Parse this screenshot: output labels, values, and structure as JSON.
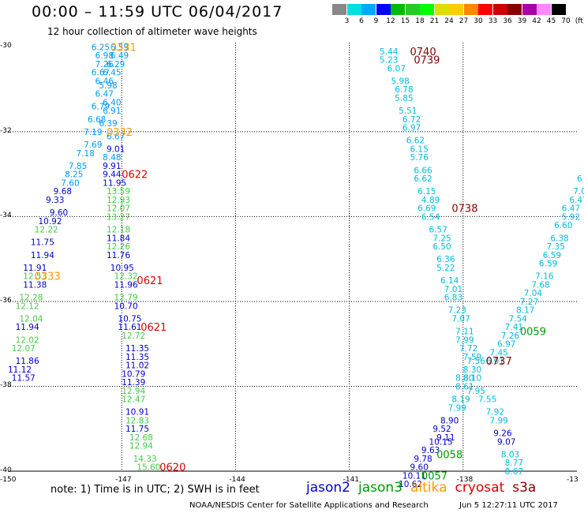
{
  "header": {
    "title": "00:00 – 11:59 UTC 06/04/2017",
    "subtitle": "12 hour collection of altimeter wave heights"
  },
  "scale": {
    "colors": [
      "#888888",
      "#00e0e0",
      "#00a8ff",
      "#0000ff",
      "#00bb00",
      "#22cc22",
      "#00ff00",
      "#dddd00",
      "#ffcc00",
      "#ff8800",
      "#ff0000",
      "#cc0000",
      "#880000",
      "#aa00aa",
      "#ff88ff",
      "#000000"
    ],
    "labels": [
      "3",
      "6",
      "9",
      "12",
      "15",
      "18",
      "21",
      "24",
      "27",
      "30",
      "33",
      "36",
      "39",
      "42",
      "45",
      "70",
      "(ft)"
    ]
  },
  "axes": {
    "lat_labels": [
      "-30",
      "-32",
      "-34",
      "-36",
      "-38",
      "-40"
    ],
    "lon_labels": [
      "-150",
      "-147",
      "-144",
      "-141",
      "-138",
      "-13"
    ]
  },
  "chart_data": {
    "type": "scatter",
    "map_bounds": {
      "lon": [
        -150,
        -135
      ],
      "lat": [
        -40,
        -29.9
      ]
    },
    "series_colors": {
      "jason2": "#0000cc",
      "jason3": "#009900",
      "altika": "#ff9900",
      "cryosat": "#dd0000",
      "s3a": "#880000"
    },
    "value_colors": {
      "c1": "#00bbdd",
      "c2": "#0099ff",
      "c3": "#0000cc",
      "c4": "#44cc44"
    },
    "points": [
      {
        "lon": -147.8,
        "lat": -30.0,
        "v": "6.25",
        "c": "c2"
      },
      {
        "lon": -147.3,
        "lat": -30.0,
        "v": "6.59",
        "c": "c2"
      },
      {
        "lon": -147.7,
        "lat": -30.2,
        "v": "6.98",
        "c": "c2"
      },
      {
        "lon": -147.3,
        "lat": -30.2,
        "v": "6.49",
        "c": "c2"
      },
      {
        "lon": -147.7,
        "lat": -30.4,
        "v": "7.26",
        "c": "c2"
      },
      {
        "lon": -147.4,
        "lat": -30.4,
        "v": "6.29",
        "c": "c2"
      },
      {
        "lon": -147.8,
        "lat": -30.6,
        "v": "6.67",
        "c": "c2"
      },
      {
        "lon": -147.5,
        "lat": -30.6,
        "v": "6.45",
        "c": "c2"
      },
      {
        "lon": -147.7,
        "lat": -30.8,
        "v": "6.46",
        "c": "c2"
      },
      {
        "lon": -147.6,
        "lat": -30.9,
        "v": "5.98",
        "c": "c2"
      },
      {
        "lon": -147.7,
        "lat": -31.1,
        "v": "6.47",
        "c": "c2"
      },
      {
        "lon": -147.5,
        "lat": -31.3,
        "v": "6.40",
        "c": "c2"
      },
      {
        "lon": -147.8,
        "lat": -31.4,
        "v": "6.79",
        "c": "c2"
      },
      {
        "lon": -147.5,
        "lat": -31.5,
        "v": "6.91",
        "c": "c2"
      },
      {
        "lon": -147.9,
        "lat": -31.7,
        "v": "6.68",
        "c": "c2"
      },
      {
        "lon": -147.6,
        "lat": -31.8,
        "v": "6.39",
        "c": "c2"
      },
      {
        "lon": -148.0,
        "lat": -32.0,
        "v": "7.19",
        "c": "c2"
      },
      {
        "lon": -147.4,
        "lat": -32.1,
        "v": "6.67",
        "c": "c2"
      },
      {
        "lon": -148.0,
        "lat": -32.3,
        "v": "7.69",
        "c": "c2"
      },
      {
        "lon": -147.4,
        "lat": -32.4,
        "v": "9.01",
        "c": "c3"
      },
      {
        "lon": -148.2,
        "lat": -32.5,
        "v": "7.18",
        "c": "c2"
      },
      {
        "lon": -147.5,
        "lat": -32.6,
        "v": "8.48",
        "c": "c2"
      },
      {
        "lon": -148.4,
        "lat": -32.8,
        "v": "7.85",
        "c": "c2"
      },
      {
        "lon": -147.5,
        "lat": -32.8,
        "v": "9.91",
        "c": "c3"
      },
      {
        "lon": -148.5,
        "lat": -33.0,
        "v": "8.25",
        "c": "c2"
      },
      {
        "lon": -147.5,
        "lat": -33.0,
        "v": "9.44",
        "c": "c3"
      },
      {
        "lon": -148.6,
        "lat": -33.2,
        "v": "7.60",
        "c": "c2"
      },
      {
        "lon": -147.5,
        "lat": -33.2,
        "v": "11.95",
        "c": "c3"
      },
      {
        "lon": -148.8,
        "lat": -33.4,
        "v": "9.68",
        "c": "c3"
      },
      {
        "lon": -147.4,
        "lat": -33.4,
        "v": "13.59",
        "c": "c4"
      },
      {
        "lon": -149.0,
        "lat": -33.6,
        "v": "9.33",
        "c": "c3"
      },
      {
        "lon": -147.4,
        "lat": -33.6,
        "v": "12.93",
        "c": "c4"
      },
      {
        "lon": -148.9,
        "lat": -33.9,
        "v": "9.60",
        "c": "c3"
      },
      {
        "lon": -147.4,
        "lat": -33.8,
        "v": "12.07",
        "c": "c4"
      },
      {
        "lon": -149.2,
        "lat": -34.1,
        "v": "10.92",
        "c": "c3"
      },
      {
        "lon": -147.4,
        "lat": -34.0,
        "v": "13.27",
        "c": "c4"
      },
      {
        "lon": -149.3,
        "lat": -34.3,
        "v": "12.22",
        "c": "c4"
      },
      {
        "lon": -147.4,
        "lat": -34.3,
        "v": "12.18",
        "c": "c4"
      },
      {
        "lon": -149.4,
        "lat": -34.6,
        "v": "11.75",
        "c": "c3"
      },
      {
        "lon": -147.4,
        "lat": -34.5,
        "v": "11.84",
        "c": "c3"
      },
      {
        "lon": -149.4,
        "lat": -34.9,
        "v": "11.94",
        "c": "c3"
      },
      {
        "lon": -147.4,
        "lat": -34.7,
        "v": "12.26",
        "c": "c4"
      },
      {
        "lon": -147.4,
        "lat": -34.9,
        "v": "11.76",
        "c": "c3"
      },
      {
        "lon": -149.6,
        "lat": -35.2,
        "v": "11.91",
        "c": "c3"
      },
      {
        "lon": -147.3,
        "lat": -35.2,
        "v": "10.95",
        "c": "c3"
      },
      {
        "lon": -149.6,
        "lat": -35.4,
        "v": "12.53",
        "c": "c4"
      },
      {
        "lon": -147.2,
        "lat": -35.4,
        "v": "12.32",
        "c": "c4"
      },
      {
        "lon": -149.6,
        "lat": -35.6,
        "v": "11.38",
        "c": "c3"
      },
      {
        "lon": -147.2,
        "lat": -35.6,
        "v": "11.96",
        "c": "c3"
      },
      {
        "lon": -149.7,
        "lat": -35.9,
        "v": "12.28",
        "c": "c4"
      },
      {
        "lon": -147.2,
        "lat": -35.9,
        "v": "12.79",
        "c": "c4"
      },
      {
        "lon": -149.8,
        "lat": -36.1,
        "v": "12.12",
        "c": "c4"
      },
      {
        "lon": -147.2,
        "lat": -36.1,
        "v": "10.70",
        "c": "c3"
      },
      {
        "lon": -149.7,
        "lat": -36.4,
        "v": "12.04",
        "c": "c4"
      },
      {
        "lon": -147.1,
        "lat": -36.4,
        "v": "10.75",
        "c": "c3"
      },
      {
        "lon": -149.8,
        "lat": -36.6,
        "v": "11.94",
        "c": "c3"
      },
      {
        "lon": -147.1,
        "lat": -36.6,
        "v": "11.61",
        "c": "c3"
      },
      {
        "lon": -149.8,
        "lat": -36.9,
        "v": "12.02",
        "c": "c4"
      },
      {
        "lon": -147.0,
        "lat": -36.8,
        "v": "12.72",
        "c": "c4"
      },
      {
        "lon": -149.9,
        "lat": -37.1,
        "v": "12.07",
        "c": "c4"
      },
      {
        "lon": -146.9,
        "lat": -37.1,
        "v": "11.35",
        "c": "c3"
      },
      {
        "lon": -149.8,
        "lat": -37.4,
        "v": "11.86",
        "c": "c3"
      },
      {
        "lon": -146.9,
        "lat": -37.3,
        "v": "11.35",
        "c": "c3"
      },
      {
        "lon": -150.0,
        "lat": -37.6,
        "v": "11.12",
        "c": "c3"
      },
      {
        "lon": -146.9,
        "lat": -37.5,
        "v": "11.02",
        "c": "c3"
      },
      {
        "lon": -149.9,
        "lat": -37.8,
        "v": "11.57",
        "c": "c3"
      },
      {
        "lon": -147.0,
        "lat": -37.7,
        "v": "10.79",
        "c": "c3"
      },
      {
        "lon": -147.0,
        "lat": -37.9,
        "v": "11.39",
        "c": "c3"
      },
      {
        "lon": -147.0,
        "lat": -38.1,
        "v": "12.94",
        "c": "c4"
      },
      {
        "lon": -147.0,
        "lat": -38.3,
        "v": "12.47",
        "c": "c4"
      },
      {
        "lon": -146.9,
        "lat": -38.6,
        "v": "10.91",
        "c": "c3"
      },
      {
        "lon": -146.9,
        "lat": -38.8,
        "v": "12.83",
        "c": "c4"
      },
      {
        "lon": -146.9,
        "lat": -39.0,
        "v": "11.75",
        "c": "c3"
      },
      {
        "lon": -146.8,
        "lat": -39.2,
        "v": "12.68",
        "c": "c4"
      },
      {
        "lon": -146.8,
        "lat": -39.4,
        "v": "12.94",
        "c": "c4"
      },
      {
        "lon": -146.7,
        "lat": -39.7,
        "v": "14.33",
        "c": "c4"
      },
      {
        "lon": -146.6,
        "lat": -39.9,
        "v": "15.60",
        "c": "c4"
      },
      {
        "lon": -140.2,
        "lat": -30.1,
        "v": "5.44",
        "c": "c1"
      },
      {
        "lon": -140.2,
        "lat": -30.3,
        "v": "5.23",
        "c": "c1"
      },
      {
        "lon": -140.0,
        "lat": -30.5,
        "v": "6.07",
        "c": "c1"
      },
      {
        "lon": -139.9,
        "lat": -30.8,
        "v": "5.98",
        "c": "c1"
      },
      {
        "lon": -139.8,
        "lat": -31.0,
        "v": "6.78",
        "c": "c1"
      },
      {
        "lon": -139.8,
        "lat": -31.2,
        "v": "5.85",
        "c": "c1"
      },
      {
        "lon": -139.7,
        "lat": -31.5,
        "v": "5.51",
        "c": "c1"
      },
      {
        "lon": -139.6,
        "lat": -31.7,
        "v": "6.72",
        "c": "c1"
      },
      {
        "lon": -139.6,
        "lat": -31.9,
        "v": "6.97",
        "c": "c1"
      },
      {
        "lon": -139.5,
        "lat": -32.2,
        "v": "6.62",
        "c": "c1"
      },
      {
        "lon": -139.4,
        "lat": -32.4,
        "v": "6.15",
        "c": "c1"
      },
      {
        "lon": -139.4,
        "lat": -32.6,
        "v": "5.76",
        "c": "c1"
      },
      {
        "lon": -139.3,
        "lat": -32.9,
        "v": "6.66",
        "c": "c1"
      },
      {
        "lon": -139.3,
        "lat": -33.1,
        "v": "6.62",
        "c": "c1"
      },
      {
        "lon": -139.2,
        "lat": -33.4,
        "v": "6.15",
        "c": "c1"
      },
      {
        "lon": -139.1,
        "lat": -33.6,
        "v": "4.89",
        "c": "c1"
      },
      {
        "lon": -139.2,
        "lat": -33.8,
        "v": "6.69",
        "c": "c1"
      },
      {
        "lon": -139.1,
        "lat": -34.0,
        "v": "6.54",
        "c": "c1"
      },
      {
        "lon": -138.9,
        "lat": -34.3,
        "v": "6.57",
        "c": "c1"
      },
      {
        "lon": -138.8,
        "lat": -34.5,
        "v": "7.25",
        "c": "c1"
      },
      {
        "lon": -138.8,
        "lat": -34.7,
        "v": "6.50",
        "c": "c1"
      },
      {
        "lon": -138.7,
        "lat": -35.0,
        "v": "6.36",
        "c": "c1"
      },
      {
        "lon": -138.7,
        "lat": -35.2,
        "v": "5.22",
        "c": "c1"
      },
      {
        "lon": -138.6,
        "lat": -35.5,
        "v": "6.14",
        "c": "c1"
      },
      {
        "lon": -138.5,
        "lat": -35.7,
        "v": "7.01",
        "c": "c1"
      },
      {
        "lon": -138.5,
        "lat": -35.9,
        "v": "6.83",
        "c": "c1"
      },
      {
        "lon": -138.4,
        "lat": -36.2,
        "v": "7.23",
        "c": "c1"
      },
      {
        "lon": -138.3,
        "lat": -36.4,
        "v": "7.07",
        "c": "c1"
      },
      {
        "lon": -138.2,
        "lat": -36.7,
        "v": "7.11",
        "c": "c1"
      },
      {
        "lon": -138.2,
        "lat": -36.9,
        "v": "7.99",
        "c": "c1"
      },
      {
        "lon": -138.1,
        "lat": -37.1,
        "v": "7.72",
        "c": "c1"
      },
      {
        "lon": -138.0,
        "lat": -37.3,
        "v": "7.59",
        "c": "c1"
      },
      {
        "lon": -137.9,
        "lat": -37.4,
        "v": "7.56",
        "c": "c1"
      },
      {
        "lon": -138.0,
        "lat": -37.6,
        "v": "8.30",
        "c": "c1"
      },
      {
        "lon": -138.2,
        "lat": -37.8,
        "v": "8.80",
        "c": "c1"
      },
      {
        "lon": -138.0,
        "lat": -37.8,
        "v": "8.10",
        "c": "c1"
      },
      {
        "lon": -138.2,
        "lat": -38.0,
        "v": "8.61",
        "c": "c1"
      },
      {
        "lon": -137.9,
        "lat": -38.1,
        "v": "7.95",
        "c": "c1"
      },
      {
        "lon": -138.3,
        "lat": -38.3,
        "v": "8.19",
        "c": "c1"
      },
      {
        "lon": -137.6,
        "lat": -38.3,
        "v": "7.55",
        "c": "c1"
      },
      {
        "lon": -138.4,
        "lat": -38.5,
        "v": "7.99",
        "c": "c1"
      },
      {
        "lon": -137.4,
        "lat": -38.6,
        "v": "7.92",
        "c": "c1"
      },
      {
        "lon": -138.6,
        "lat": -38.8,
        "v": "8.90",
        "c": "c3"
      },
      {
        "lon": -137.3,
        "lat": -38.8,
        "v": "7.99",
        "c": "c1"
      },
      {
        "lon": -138.8,
        "lat": -39.0,
        "v": "9.52",
        "c": "c3"
      },
      {
        "lon": -137.2,
        "lat": -39.1,
        "v": "9.26",
        "c": "c3"
      },
      {
        "lon": -138.7,
        "lat": -39.2,
        "v": "9.11",
        "c": "c3"
      },
      {
        "lon": -137.1,
        "lat": -39.3,
        "v": "9.07",
        "c": "c3"
      },
      {
        "lon": -138.9,
        "lat": -39.3,
        "v": "10.15",
        "c": "c3"
      },
      {
        "lon": -137.0,
        "lat": -39.6,
        "v": "8.03",
        "c": "c1"
      },
      {
        "lon": -139.1,
        "lat": -39.5,
        "v": "9.63",
        "c": "c3"
      },
      {
        "lon": -136.9,
        "lat": -39.8,
        "v": "8.77",
        "c": "c1"
      },
      {
        "lon": -139.3,
        "lat": -39.7,
        "v": "9.78",
        "c": "c3"
      },
      {
        "lon": -136.9,
        "lat": -40.0,
        "v": "8.67",
        "c": "c1"
      },
      {
        "lon": -139.4,
        "lat": -39.9,
        "v": "9.60",
        "c": "c3"
      },
      {
        "lon": -139.6,
        "lat": -40.1,
        "v": "10.11",
        "c": "c3"
      },
      {
        "lon": -139.7,
        "lat": -40.3,
        "v": "10.62",
        "c": "c3"
      },
      {
        "lon": -135.0,
        "lat": -33.1,
        "v": "6",
        "c": "c1"
      },
      {
        "lon": -135.1,
        "lat": -33.4,
        "v": "7.0",
        "c": "c1"
      },
      {
        "lon": -135.2,
        "lat": -33.6,
        "v": "6.47",
        "c": "c1"
      },
      {
        "lon": -135.4,
        "lat": -33.8,
        "v": "6.47",
        "c": "c1"
      },
      {
        "lon": -135.4,
        "lat": -34.0,
        "v": "5.92",
        "c": "c1"
      },
      {
        "lon": -135.6,
        "lat": -34.2,
        "v": "6.60",
        "c": "c1"
      },
      {
        "lon": -135.7,
        "lat": -34.5,
        "v": "6.38",
        "c": "c1"
      },
      {
        "lon": -135.8,
        "lat": -34.7,
        "v": "7.35",
        "c": "c1"
      },
      {
        "lon": -135.9,
        "lat": -34.9,
        "v": "6.59",
        "c": "c1"
      },
      {
        "lon": -136.0,
        "lat": -35.1,
        "v": "6.59",
        "c": "c1"
      },
      {
        "lon": -136.1,
        "lat": -35.4,
        "v": "7.16",
        "c": "c1"
      },
      {
        "lon": -136.2,
        "lat": -35.6,
        "v": "7.68",
        "c": "c1"
      },
      {
        "lon": -136.4,
        "lat": -35.8,
        "v": "7.04",
        "c": "c1"
      },
      {
        "lon": -136.5,
        "lat": -36.0,
        "v": "7.27",
        "c": "c1"
      },
      {
        "lon": -136.6,
        "lat": -36.2,
        "v": "8.17",
        "c": "c1"
      },
      {
        "lon": -136.8,
        "lat": -36.4,
        "v": "7.54",
        "c": "c1"
      },
      {
        "lon": -136.9,
        "lat": -36.6,
        "v": "7.41",
        "c": "c1"
      },
      {
        "lon": -137.0,
        "lat": -36.8,
        "v": "7.26",
        "c": "c1"
      },
      {
        "lon": -137.1,
        "lat": -37.0,
        "v": "6.97",
        "c": "c1"
      },
      {
        "lon": -137.3,
        "lat": -37.2,
        "v": "7.45",
        "c": "c1"
      },
      {
        "lon": -137.4,
        "lat": -37.4,
        "v": "6.91",
        "c": "c1"
      }
    ],
    "labels": [
      {
        "lon": -147.3,
        "lat": -30.0,
        "t": "0331",
        "sat": "altika"
      },
      {
        "lon": -147.4,
        "lat": -32.0,
        "t": "0332",
        "sat": "altika"
      },
      {
        "lon": -147.0,
        "lat": -33.0,
        "t": "0622",
        "sat": "cryosat"
      },
      {
        "lon": -149.3,
        "lat": -35.4,
        "t": "0333",
        "sat": "altika"
      },
      {
        "lon": -146.6,
        "lat": -35.5,
        "t": "0621",
        "sat": "cryosat"
      },
      {
        "lon": -146.5,
        "lat": -36.6,
        "t": "0621",
        "sat": "cryosat"
      },
      {
        "lon": -146.0,
        "lat": -39.9,
        "t": "0620",
        "sat": "cryosat"
      },
      {
        "lon": -139.4,
        "lat": -30.1,
        "t": "0740",
        "sat": "s3a"
      },
      {
        "lon": -139.3,
        "lat": -30.3,
        "t": "0739",
        "sat": "s3a"
      },
      {
        "lon": -138.3,
        "lat": -33.8,
        "t": "0738",
        "sat": "s3a"
      },
      {
        "lon": -136.5,
        "lat": -36.7,
        "t": "0059",
        "sat": "jason3"
      },
      {
        "lon": -137.4,
        "lat": -37.4,
        "t": "0737",
        "sat": "s3a"
      },
      {
        "lon": -138.7,
        "lat": -39.6,
        "t": "0058",
        "sat": "jason3"
      },
      {
        "lon": -139.1,
        "lat": -40.1,
        "t": "0057",
        "sat": "jason3"
      }
    ]
  },
  "footer": {
    "note": "note: 1) Time is in UTC; 2) SWH is in feet",
    "legend": {
      "jason2": "jason2",
      "jason3": "jason3",
      "altika": "altika",
      "cryosat": "cryosat",
      "s3a": "s3a"
    },
    "credit": "NOAA/NESDIS Center for Satellite Applications and Research",
    "timestamp": "Jun  5 12:27:11 UTC 2017"
  }
}
